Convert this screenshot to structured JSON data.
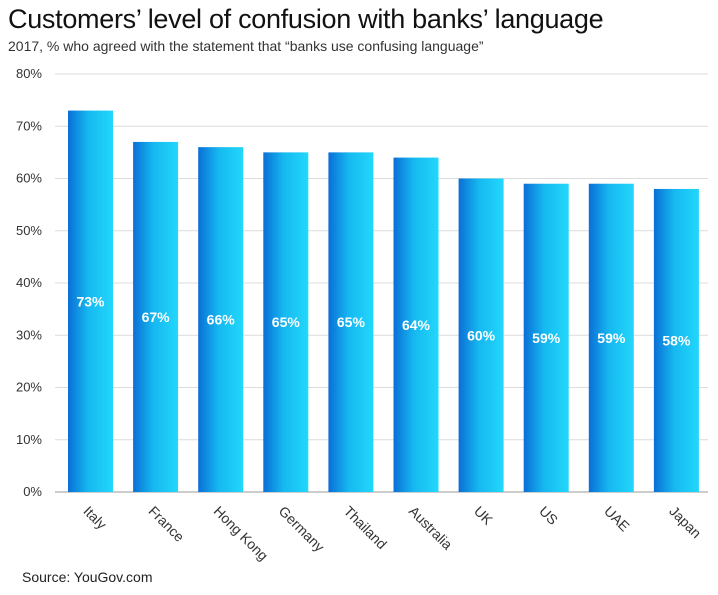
{
  "title": "Customers’ level of confusion with banks’ language",
  "subtitle": "2017, % who agreed with the statement that “banks use confusing language”",
  "source": "Source: YouGov.com",
  "chart_data": {
    "type": "bar",
    "title": "Customers’ level of confusion with banks’ language",
    "subtitle": "2017, % who agreed with the statement that “banks use confusing language”",
    "categories": [
      "Italy",
      "France",
      "Hong Kong",
      "Germany",
      "Thailand",
      "Australia",
      "UK",
      "US",
      "UAE",
      "Japan"
    ],
    "values": [
      73,
      67,
      66,
      65,
      65,
      64,
      60,
      59,
      59,
      58
    ],
    "data_labels": [
      "73%",
      "67%",
      "66%",
      "65%",
      "65%",
      "64%",
      "60%",
      "59%",
      "59%",
      "58%"
    ],
    "yticks": [
      "0%",
      "10%",
      "20%",
      "30%",
      "40%",
      "50%",
      "60%",
      "70%",
      "80%"
    ],
    "ylim": [
      0,
      80
    ],
    "grid": true,
    "legend": "none",
    "bar_gradient": [
      "#0a6fd6",
      "#16b8f0",
      "#22d8fb"
    ]
  }
}
